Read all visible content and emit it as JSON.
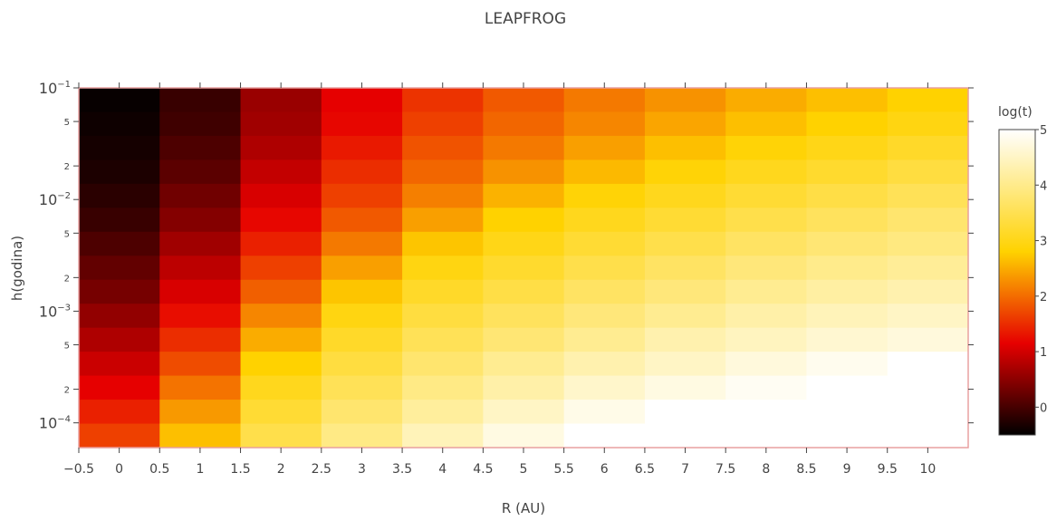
{
  "chart_data": {
    "type": "heatmap",
    "title": "LEAPFROG",
    "xlabel": "R (AU)",
    "ylabel": "h(godina)",
    "x_scale": "linear",
    "y_scale": "log",
    "x_categories": [
      0,
      1,
      2,
      3,
      4,
      5,
      6,
      7,
      8,
      9,
      10
    ],
    "x_tick_labels": [
      "−0.5",
      "0",
      "0.5",
      "1",
      "1.5",
      "2",
      "2.5",
      "3",
      "3.5",
      "4",
      "4.5",
      "5",
      "5.5",
      "6",
      "6.5",
      "7",
      "7.5",
      "8",
      "8.5",
      "9",
      "9.5",
      "10"
    ],
    "x_tick_values": [
      -0.5,
      0,
      0.5,
      1,
      1.5,
      2,
      2.5,
      3,
      3.5,
      4,
      4.5,
      5,
      5.5,
      6,
      6.5,
      7,
      7.5,
      8,
      8.5,
      9,
      9.5,
      10
    ],
    "xlim": [
      -0.5,
      10.5
    ],
    "y_major_ticks": [
      {
        "value": 0.1,
        "base": "10",
        "exp": "−1"
      },
      {
        "value": 0.01,
        "base": "10",
        "exp": "−2"
      },
      {
        "value": 0.001,
        "base": "10",
        "exp": "−3"
      },
      {
        "value": 0.0001,
        "base": "10",
        "exp": "−4"
      }
    ],
    "y_minor_ticks": [
      {
        "value": 0.05,
        "label": "5"
      },
      {
        "value": 0.02,
        "label": "2"
      },
      {
        "value": 0.005,
        "label": "5"
      },
      {
        "value": 0.002,
        "label": "2"
      },
      {
        "value": 0.0005,
        "label": "5"
      },
      {
        "value": 0.0002,
        "label": "2"
      }
    ],
    "ylim": [
      6e-05,
      0.1
    ],
    "y_values": [
      0.1,
      0.06,
      0.036,
      0.022,
      0.013,
      0.0078,
      0.0046,
      0.0028,
      0.0017,
      0.001,
      0.0006,
      0.00036,
      0.00022,
      0.00013,
      7.8e-05
    ],
    "z": [
      [
        -0.45,
        -0.1,
        0.6,
        1.15,
        1.55,
        1.85,
        2.1,
        2.3,
        2.5,
        2.65,
        2.8
      ],
      [
        -0.4,
        -0.05,
        0.65,
        1.2,
        1.65,
        1.95,
        2.2,
        2.45,
        2.65,
        2.8,
        2.95
      ],
      [
        -0.35,
        0.05,
        0.75,
        1.35,
        1.8,
        2.1,
        2.4,
        2.65,
        2.85,
        3.0,
        3.15
      ],
      [
        -0.3,
        0.15,
        0.9,
        1.5,
        1.95,
        2.3,
        2.6,
        2.85,
        3.05,
        3.2,
        3.35
      ],
      [
        -0.2,
        0.3,
        1.05,
        1.65,
        2.15,
        2.55,
        2.85,
        3.05,
        3.25,
        3.4,
        3.55
      ],
      [
        -0.1,
        0.45,
        1.2,
        1.85,
        2.4,
        2.8,
        3.05,
        3.25,
        3.45,
        3.6,
        3.75
      ],
      [
        0.05,
        0.65,
        1.4,
        2.1,
        2.7,
        3.0,
        3.25,
        3.45,
        3.65,
        3.8,
        3.9
      ],
      [
        0.2,
        0.85,
        1.65,
        2.4,
        2.95,
        3.2,
        3.45,
        3.65,
        3.85,
        4.0,
        4.1
      ],
      [
        0.35,
        1.05,
        1.9,
        2.7,
        3.15,
        3.4,
        3.65,
        3.85,
        4.05,
        4.2,
        4.3
      ],
      [
        0.55,
        1.25,
        2.2,
        2.95,
        3.35,
        3.6,
        3.85,
        4.05,
        4.25,
        4.4,
        4.5
      ],
      [
        0.75,
        1.5,
        2.5,
        3.15,
        3.55,
        3.8,
        4.05,
        4.3,
        4.45,
        4.6,
        4.7
      ],
      [
        0.95,
        1.75,
        2.8,
        3.35,
        3.75,
        4.05,
        4.3,
        4.5,
        4.7,
        4.85,
        5.0
      ],
      [
        1.15,
        2.05,
        3.05,
        3.55,
        3.95,
        4.25,
        4.55,
        4.75,
        4.9,
        5.0,
        5.0
      ],
      [
        1.4,
        2.35,
        3.25,
        3.75,
        4.15,
        4.5,
        4.8,
        5.0,
        5.0,
        5.0,
        5.0
      ],
      [
        1.65,
        2.65,
        3.45,
        3.95,
        4.4,
        4.75,
        5.0,
        5.0,
        5.0,
        5.0,
        5.0
      ]
    ],
    "zlim": [
      -0.5,
      5
    ],
    "colorscale": [
      [
        0,
        "#000000"
      ],
      [
        0.3,
        "#e60000"
      ],
      [
        0.6,
        "#ffd200"
      ],
      [
        1,
        "#ffffff"
      ]
    ],
    "colorbar": {
      "title": "log(t)",
      "tick_values": [
        0,
        1,
        2,
        3,
        4,
        5
      ],
      "tick_labels": [
        "0",
        "1",
        "2",
        "3",
        "4",
        "5"
      ]
    },
    "grid": false,
    "frame_color": "#e8a0a0"
  }
}
